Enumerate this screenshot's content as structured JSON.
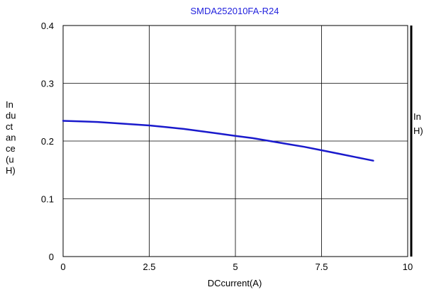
{
  "chart_data": {
    "type": "line",
    "title": "SMDA252010FA-R24",
    "xlabel": "DCcurrent(A)",
    "ylabel": "Inductance(uH)",
    "ylabel_wrapped": [
      "In",
      "du",
      "ct",
      "an",
      "ce",
      "(u",
      "H)"
    ],
    "ylabel_right_fragment": [
      "In",
      "H)"
    ],
    "xlim": [
      0,
      10
    ],
    "ylim": [
      0,
      0.4
    ],
    "x_ticks": [
      "0",
      "2.5",
      "5",
      "7.5",
      "10"
    ],
    "y_ticks": [
      "0",
      "0.1",
      "0.2",
      "0.3",
      "0.4"
    ],
    "grid": true,
    "series": [
      {
        "x": [
          0,
          0.5,
          1,
          1.5,
          2,
          2.5,
          3,
          3.5,
          4,
          4.5,
          5,
          5.5,
          6,
          6.5,
          7,
          7.5,
          8,
          8.5,
          9
        ],
        "y": [
          0.235,
          0.234,
          0.233,
          0.231,
          0.229,
          0.227,
          0.224,
          0.221,
          0.217,
          0.213,
          0.209,
          0.205,
          0.2,
          0.195,
          0.19,
          0.184,
          0.178,
          0.172,
          0.166
        ]
      }
    ],
    "colors": {
      "line": "#1a1acc",
      "title": "#2222dd",
      "grid": "#000000",
      "axis": "#000000"
    }
  }
}
